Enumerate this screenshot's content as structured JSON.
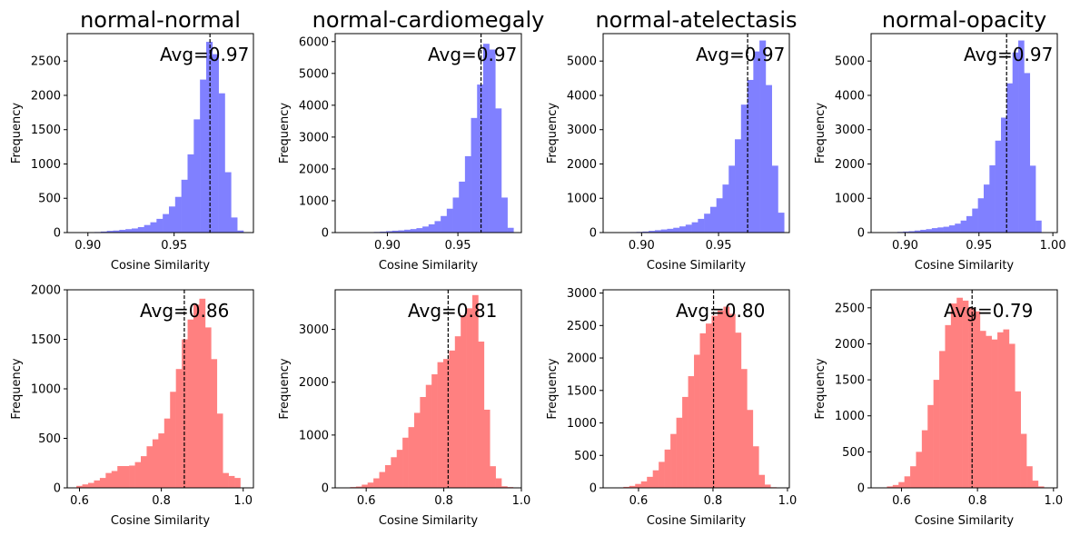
{
  "chart_data": [
    {
      "type": "bar",
      "title": "normal-normal",
      "xlabel": "Cosine Similarity",
      "ylabel": "Frequency",
      "xlim": [
        0.888,
        0.996
      ],
      "ylim": [
        0,
        2900
      ],
      "xticks": [
        0.9,
        0.95
      ],
      "xtick_labels": [
        "0.90",
        "0.95"
      ],
      "yticks": [
        0,
        500,
        1000,
        1500,
        2000,
        2500
      ],
      "ytick_labels": [
        "0",
        "500",
        "1000",
        "1500",
        "2000",
        "2500"
      ],
      "color": "#8080ff",
      "bins": [
        0.893,
        0.8966,
        0.9002,
        0.9038,
        0.9074,
        0.911,
        0.9146,
        0.9182,
        0.9218,
        0.9254,
        0.929,
        0.9326,
        0.9362,
        0.9398,
        0.9434,
        0.947,
        0.9506,
        0.9542,
        0.9578,
        0.9614,
        0.965,
        0.9686,
        0.9722,
        0.9758,
        0.9794,
        0.983,
        0.9866,
        0.9902
      ],
      "counts": [
        2,
        3,
        5,
        8,
        15,
        25,
        30,
        40,
        50,
        60,
        80,
        110,
        150,
        200,
        270,
        380,
        520,
        770,
        1140,
        1650,
        2230,
        2780,
        2600,
        2030,
        880,
        220,
        30,
        5
      ],
      "avg": 0.9708,
      "avg_label": "Avg=0.97"
    },
    {
      "type": "bar",
      "title": "normal-cardiomegaly",
      "xlabel": "Cosine Similarity",
      "ylabel": "Frequency",
      "xlim": [
        0.863,
        0.995
      ],
      "ylim": [
        0,
        6250
      ],
      "xticks": [
        0.9,
        0.95
      ],
      "xtick_labels": [
        "0.90",
        "0.95"
      ],
      "yticks": [
        0,
        1000,
        2000,
        3000,
        4000,
        5000,
        6000
      ],
      "ytick_labels": [
        "0",
        "1000",
        "2000",
        "3000",
        "4000",
        "5000",
        "6000"
      ],
      "color": "#8080ff",
      "bins": [
        0.869,
        0.8733,
        0.8776,
        0.8819,
        0.8862,
        0.8905,
        0.8948,
        0.8991,
        0.9034,
        0.9077,
        0.912,
        0.9163,
        0.9206,
        0.9249,
        0.9292,
        0.9335,
        0.9378,
        0.9421,
        0.9464,
        0.9507,
        0.955,
        0.9593,
        0.9636,
        0.9679,
        0.9722,
        0.9765,
        0.9808,
        0.9851
      ],
      "counts": [
        2,
        3,
        5,
        8,
        12,
        20,
        30,
        45,
        60,
        70,
        90,
        110,
        140,
        190,
        260,
        360,
        520,
        750,
        1100,
        1600,
        2400,
        3600,
        4650,
        5930,
        5750,
        3900,
        1100,
        150
      ],
      "avg": 0.9664,
      "avg_label": "Avg=0.97"
    },
    {
      "type": "bar",
      "title": "normal-atelectasis",
      "xlabel": "Cosine Similarity",
      "ylabel": "Frequency",
      "xlim": [
        0.875,
        0.996
      ],
      "ylim": [
        0,
        5800
      ],
      "xticks": [
        0.9,
        0.95
      ],
      "xtick_labels": [
        "0.90",
        "0.95"
      ],
      "yticks": [
        0,
        1000,
        2000,
        3000,
        4000,
        5000
      ],
      "ytick_labels": [
        "0",
        "1000",
        "2000",
        "3000",
        "4000",
        "5000"
      ],
      "color": "#8080ff",
      "bins": [
        0.8806,
        0.8846,
        0.8886,
        0.8926,
        0.8966,
        0.9006,
        0.9046,
        0.9086,
        0.9126,
        0.9166,
        0.9206,
        0.9246,
        0.9286,
        0.9326,
        0.9366,
        0.9406,
        0.9446,
        0.9486,
        0.9526,
        0.9566,
        0.9606,
        0.9646,
        0.9686,
        0.9726,
        0.9766,
        0.9806,
        0.9846,
        0.9886
      ],
      "counts": [
        2,
        5,
        10,
        15,
        20,
        30,
        50,
        70,
        90,
        110,
        140,
        180,
        230,
        300,
        400,
        550,
        750,
        1000,
        1400,
        1950,
        2720,
        3730,
        4450,
        5280,
        5600,
        4300,
        1950,
        580
      ],
      "avg": 0.9689,
      "avg_label": "Avg=0.97"
    },
    {
      "type": "bar",
      "title": "normal-opacity",
      "xlabel": "Cosine Similarity",
      "ylabel": "Frequency",
      "xlim": [
        0.877,
        1.003
      ],
      "ylim": [
        0,
        5800
      ],
      "xticks": [
        0.9,
        0.95,
        1.0
      ],
      "xtick_labels": [
        "0.90",
        "0.95",
        "1.00"
      ],
      "yticks": [
        0,
        1000,
        2000,
        3000,
        4000,
        5000
      ],
      "ytick_labels": [
        "0",
        "1000",
        "2000",
        "3000",
        "4000",
        "5000"
      ],
      "color": "#8080ff",
      "bins": [
        0.883,
        0.8869,
        0.8908,
        0.8947,
        0.8986,
        0.9025,
        0.9064,
        0.9103,
        0.9142,
        0.9181,
        0.922,
        0.9259,
        0.9298,
        0.9337,
        0.9376,
        0.9415,
        0.9454,
        0.9493,
        0.9532,
        0.9571,
        0.961,
        0.9649,
        0.9688,
        0.9727,
        0.9766,
        0.9805,
        0.9844,
        0.9883
      ],
      "counts": [
        2,
        5,
        10,
        20,
        30,
        40,
        60,
        80,
        100,
        130,
        150,
        170,
        210,
        260,
        350,
        480,
        700,
        1000,
        1400,
        1960,
        2680,
        3350,
        4350,
        5250,
        5600,
        4650,
        1950,
        350
      ],
      "avg": 0.9687,
      "avg_label": "Avg=0.97"
    },
    {
      "type": "bar",
      "title": "",
      "xlabel": "Cosine Similarity",
      "ylabel": "Frequency",
      "xlim": [
        0.57,
        1.025
      ],
      "ylim": [
        0,
        2000
      ],
      "xticks": [
        0.6,
        0.8,
        1.0
      ],
      "xtick_labels": [
        "0.6",
        "0.8",
        "1.0"
      ],
      "yticks": [
        0,
        500,
        1000,
        1500,
        2000
      ],
      "ytick_labels": [
        "0",
        "500",
        "1000",
        "1500",
        "2000"
      ],
      "color": "#ff8080",
      "bins": [
        0.5925,
        0.6068,
        0.6211,
        0.6354,
        0.6497,
        0.664,
        0.6783,
        0.6926,
        0.7069,
        0.7212,
        0.7355,
        0.7498,
        0.7641,
        0.7784,
        0.7927,
        0.807,
        0.8213,
        0.8356,
        0.8499,
        0.8642,
        0.8785,
        0.8928,
        0.9071,
        0.9214,
        0.9357,
        0.95,
        0.9643,
        0.9786
      ],
      "counts": [
        20,
        35,
        50,
        75,
        100,
        150,
        170,
        220,
        220,
        225,
        260,
        320,
        420,
        490,
        550,
        700,
        970,
        1200,
        1500,
        1700,
        1850,
        1910,
        1620,
        1300,
        750,
        150,
        120,
        100
      ],
      "avg": 0.8561,
      "avg_label": "Avg=0.86"
    },
    {
      "type": "bar",
      "title": "",
      "xlabel": "Cosine Similarity",
      "ylabel": "Frequency",
      "xlim": [
        0.52,
        1.0
      ],
      "ylim": [
        0,
        3750
      ],
      "xticks": [
        0.6,
        0.8,
        1.0
      ],
      "xtick_labels": [
        "0.6",
        "0.8",
        "1.0"
      ],
      "yticks": [
        0,
        1000,
        2000,
        3000
      ],
      "ytick_labels": [
        "0",
        "1000",
        "2000",
        "3000"
      ],
      "color": "#ff8080",
      "bins": [
        0.5436,
        0.5586,
        0.5736,
        0.5886,
        0.6036,
        0.6186,
        0.6336,
        0.6486,
        0.6636,
        0.6786,
        0.6936,
        0.7086,
        0.7236,
        0.7386,
        0.7536,
        0.7686,
        0.7836,
        0.7986,
        0.8136,
        0.8286,
        0.8436,
        0.8586,
        0.8736,
        0.8886,
        0.9036,
        0.9186,
        0.9336,
        0.9486,
        0.9636
      ],
      "counts": [
        5,
        15,
        25,
        60,
        100,
        180,
        300,
        430,
        580,
        720,
        950,
        1150,
        1420,
        1720,
        1950,
        2150,
        2380,
        2440,
        2600,
        2870,
        3270,
        3400,
        3650,
        2770,
        1480,
        410,
        180,
        30,
        15
      ],
      "avg": 0.8112,
      "avg_label": "Avg=0.81"
    },
    {
      "type": "bar",
      "title": "",
      "xlabel": "Cosine Similarity",
      "ylabel": "Frequency",
      "xlim": [
        0.505,
        1.005
      ],
      "ylim": [
        0,
        3050
      ],
      "xticks": [
        0.6,
        0.8,
        1.0
      ],
      "xtick_labels": [
        "0.6",
        "0.8",
        "1.0"
      ],
      "yticks": [
        0,
        500,
        1000,
        1500,
        2000,
        2500,
        3000
      ],
      "ytick_labels": [
        "0",
        "500",
        "1000",
        "1500",
        "2000",
        "2500",
        "3000"
      ],
      "color": "#ff8080",
      "bins": [
        0.5278,
        0.5436,
        0.5594,
        0.5752,
        0.591,
        0.6068,
        0.6226,
        0.6384,
        0.6542,
        0.67,
        0.6858,
        0.7016,
        0.7174,
        0.7332,
        0.749,
        0.7648,
        0.7806,
        0.7964,
        0.8122,
        0.828,
        0.8438,
        0.8596,
        0.8754,
        0.8912,
        0.907,
        0.9228,
        0.9386,
        0.9544
      ],
      "counts": [
        2,
        5,
        15,
        30,
        60,
        100,
        170,
        270,
        400,
        590,
        830,
        1080,
        1400,
        1720,
        2050,
        2380,
        2530,
        2650,
        2730,
        2790,
        2680,
        2390,
        1830,
        1200,
        640,
        200,
        50,
        10
      ],
      "avg": 0.8015,
      "avg_label": "Avg=0.80"
    },
    {
      "type": "bar",
      "title": "",
      "xlabel": "Cosine Similarity",
      "ylabel": "Frequency",
      "xlim": [
        0.52,
        1.01
      ],
      "ylim": [
        0,
        2750
      ],
      "xticks": [
        0.6,
        0.8,
        1.0
      ],
      "xtick_labels": [
        "0.6",
        "0.8",
        "1.0"
      ],
      "yticks": [
        0,
        500,
        1000,
        1500,
        2000,
        2500
      ],
      "ytick_labels": [
        "0",
        "500",
        "1000",
        "1500",
        "2000",
        "2500"
      ],
      "color": "#ff8080",
      "bins": [
        0.5464,
        0.5617,
        0.577,
        0.5923,
        0.6076,
        0.6229,
        0.6382,
        0.6535,
        0.6688,
        0.6841,
        0.6994,
        0.7147,
        0.73,
        0.7453,
        0.7606,
        0.7759,
        0.7912,
        0.8065,
        0.8218,
        0.8371,
        0.8524,
        0.8677,
        0.883,
        0.8983,
        0.9136,
        0.9289,
        0.9442,
        0.9595
      ],
      "counts": [
        5,
        20,
        40,
        80,
        160,
        300,
        500,
        800,
        1150,
        1500,
        1900,
        2260,
        2560,
        2640,
        2600,
        2500,
        2450,
        2180,
        2110,
        2060,
        2160,
        2200,
        2000,
        1340,
        750,
        300,
        100,
        20
      ],
      "avg": 0.7858,
      "avg_label": "Avg=0.79"
    }
  ]
}
